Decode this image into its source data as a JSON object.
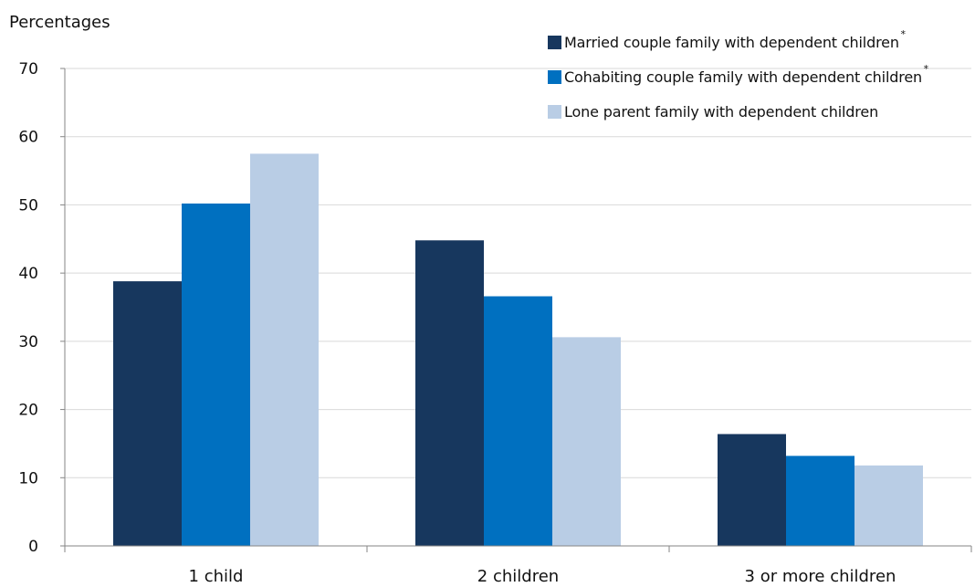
{
  "chart_data": {
    "type": "bar",
    "ylabel": "Percentages",
    "categories": [
      "1 child",
      "2 children",
      "3 or more children"
    ],
    "series": [
      {
        "name": "Married couple family with dependent children",
        "marker": "*",
        "values": [
          38.8,
          44.8,
          16.4
        ]
      },
      {
        "name": "Cohabiting couple family with dependent children",
        "marker": "*",
        "values": [
          50.2,
          36.6,
          13.2
        ]
      },
      {
        "name": "Lone parent family with dependent children",
        "values": [
          57.5,
          30.6,
          11.8
        ]
      }
    ],
    "ylim": [
      0,
      70
    ],
    "yticks": [
      0,
      10,
      20,
      30,
      40,
      50,
      60,
      70
    ],
    "grid": true,
    "legend_position": "top-right",
    "colors": [
      "#17375e",
      "#0070c0",
      "#b9cde5"
    ]
  }
}
